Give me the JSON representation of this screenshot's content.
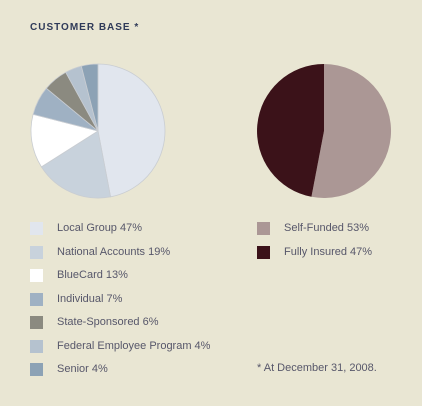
{
  "title": "CUSTOMER BASE *",
  "chart_data": [
    {
      "type": "pie",
      "categories": [
        "Local Group",
        "National Accounts",
        "BlueCard",
        "Individual",
        "State-Sponsored",
        "Federal Employee Program",
        "Senior"
      ],
      "values": [
        47,
        19,
        13,
        7,
        6,
        4,
        4
      ],
      "colors": [
        "#e1e6ee",
        "#c8d2dc",
        "#ffffff",
        "#9fb1c3",
        "#8b8a80",
        "#b5c2cf",
        "#8ca2b5"
      ],
      "legend": [
        {
          "label": "Local Group 47%",
          "color": "#e1e6ee"
        },
        {
          "label": "National Accounts 19%",
          "color": "#c8d2dc"
        },
        {
          "label": "BlueCard 13%",
          "color": "#ffffff"
        },
        {
          "label": "Individual 7%",
          "color": "#9fb1c3"
        },
        {
          "label": "State-Sponsored 6%",
          "color": "#8b8a80"
        },
        {
          "label": "Federal Employee Program 4%",
          "color": "#b5c2cf"
        },
        {
          "label": "Senior 4%",
          "color": "#8ca2b5"
        }
      ]
    },
    {
      "type": "pie",
      "categories": [
        "Self-Funded",
        "Fully Insured"
      ],
      "values": [
        53,
        47
      ],
      "colors": [
        "#ab9795",
        "#3b1219"
      ],
      "legend": [
        {
          "label": "Self-Funded 53%",
          "color": "#ab9795"
        },
        {
          "label": "Fully Insured 47%",
          "color": "#3b1219"
        }
      ]
    }
  ],
  "footnote": "* At December 31, 2008."
}
